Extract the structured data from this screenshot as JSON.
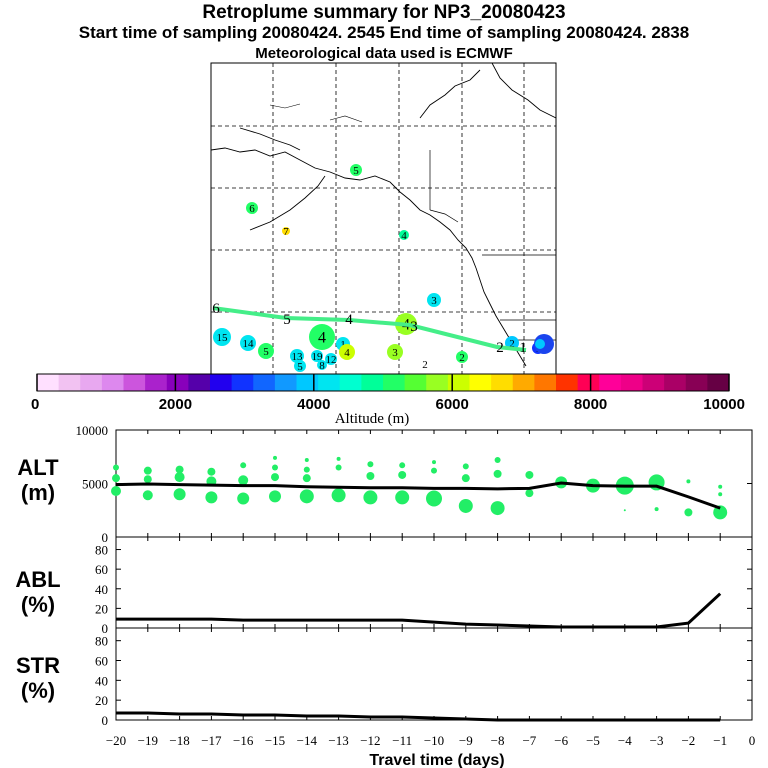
{
  "header": {
    "title": "Retroplume summary for NP3_20080423",
    "sampling_line": "Start time of sampling 20080424.  2545     End time of sampling 20080424.  2838",
    "met_line": "Meteorological data used is ECMWF"
  },
  "colorbar": {
    "tick_labels": [
      "0",
      "2000",
      "4000",
      "6000",
      "8000",
      "10000"
    ],
    "title": "Altitude (m)",
    "colors": [
      "#ffe0ff",
      "#f2c2f2",
      "#e8a8f0",
      "#dd88ee",
      "#cc55dd",
      "#aa22cc",
      "#8800bb",
      "#5500aa",
      "#2200ee",
      "#1133ff",
      "#1166ff",
      "#1199ff",
      "#00c8ff",
      "#00e5f0",
      "#00ffd0",
      "#00ff99",
      "#22ff66",
      "#55ff33",
      "#99ff22",
      "#ccff00",
      "#ffff00",
      "#ffdd00",
      "#ffaa00",
      "#ff7700",
      "#ff3300",
      "#ff0055",
      "#ff0099",
      "#ee0088",
      "#cc0077",
      "#aa0066",
      "#880055",
      "#660044"
    ]
  },
  "map": {
    "track_labels": [
      "1",
      "2",
      "3",
      "4",
      "5",
      "6"
    ],
    "scatter_labels": [
      "15",
      "14",
      "5",
      "13",
      "19",
      "12",
      "1",
      "4",
      "3",
      "2",
      "3",
      "4",
      "5",
      "6",
      "7",
      "4",
      "4",
      "2",
      "1",
      "5",
      "8",
      "2"
    ]
  },
  "chart_data": [
    {
      "type": "line",
      "name": "ALT",
      "ylabel": "ALT\n(m)",
      "ylabel_lines": [
        "ALT",
        "(m)"
      ],
      "yticks": [
        "10000",
        "5000",
        "0"
      ],
      "ylim": [
        0,
        10000
      ],
      "x": [
        -20,
        -19,
        -18,
        -17,
        -16,
        -15,
        -14,
        -13,
        -12,
        -11,
        -10,
        -9,
        -8,
        -7,
        -6,
        -5,
        -4,
        -3,
        -2,
        -1
      ],
      "values": [
        4900,
        4950,
        4900,
        4850,
        4800,
        4800,
        4700,
        4650,
        4600,
        4600,
        4550,
        4550,
        4500,
        4550,
        5050,
        4800,
        4750,
        4750,
        3750,
        2700
      ]
    },
    {
      "type": "line",
      "name": "ABL",
      "ylabel": "ABL\n(%)",
      "ylabel_lines": [
        "ABL",
        "(%)"
      ],
      "yticks": [
        "80",
        "60",
        "40",
        "20",
        "0"
      ],
      "ylim": [
        0,
        90
      ],
      "x": [
        -20,
        -19,
        -18,
        -17,
        -16,
        -15,
        -14,
        -13,
        -12,
        -11,
        -10,
        -9,
        -8,
        -7,
        -6,
        -5,
        -4,
        -3,
        -2,
        -1
      ],
      "values": [
        9,
        9,
        9,
        9,
        8,
        8,
        8,
        8,
        8,
        8,
        6,
        4,
        3,
        2,
        1,
        1,
        1,
        1,
        5,
        35
      ]
    },
    {
      "type": "line",
      "name": "STR",
      "ylabel": "STR\n(%)",
      "ylabel_lines": [
        "STR",
        "(%)"
      ],
      "yticks": [
        "80",
        "60",
        "40",
        "20",
        "0"
      ],
      "ylim": [
        0,
        90
      ],
      "x": [
        -20,
        -19,
        -18,
        -17,
        -16,
        -15,
        -14,
        -13,
        -12,
        -11,
        -10,
        -9,
        -8,
        -7,
        -6,
        -5,
        -4,
        -3,
        -2,
        -1
      ],
      "values": [
        7,
        7,
        6,
        6,
        5,
        5,
        4,
        4,
        3,
        3,
        2,
        1,
        0,
        0,
        0,
        0,
        0,
        0,
        0,
        0
      ]
    }
  ],
  "xaxis": {
    "tick_labels": [
      "−20",
      "−19",
      "−18",
      "−17",
      "−16",
      "−15",
      "−14",
      "−13",
      "−12",
      "−11",
      "−10",
      "−9",
      "−8",
      "−7",
      "−6",
      "−5",
      "−4",
      "−3",
      "−2",
      "−1",
      "0"
    ],
    "title": "Travel time (days)",
    "xlim": [
      -20,
      0
    ]
  },
  "style": {
    "line_color": "#000000",
    "dot_color": "#22ee66",
    "track_color": "#44ee88"
  }
}
